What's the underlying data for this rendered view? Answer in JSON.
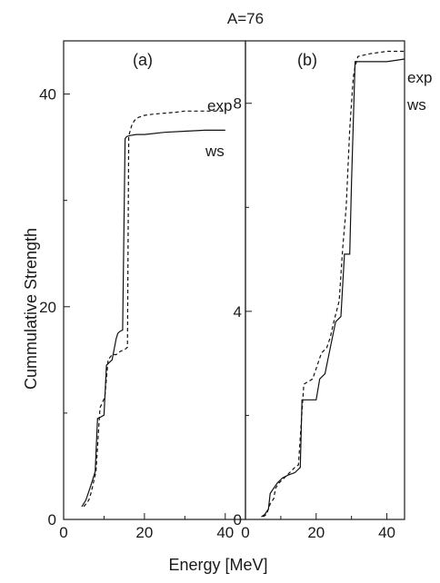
{
  "figure_title": "A=76",
  "chart_data": [
    {
      "type": "line",
      "panel_label": "(a)",
      "xlabel": "Energy [MeV]",
      "ylabel": "Cummulative Strength",
      "xlim": [
        0,
        45
      ],
      "ylim": [
        0,
        45
      ],
      "xticks": [
        0,
        20,
        40
      ],
      "yticks": [
        0,
        20,
        40
      ],
      "grid": false,
      "series": [
        {
          "name": "exp",
          "dash": "4,3",
          "x": [
            5.0,
            6.2,
            6.8,
            7.4,
            8.0,
            9.0,
            9.6,
            10.2,
            11.0,
            12.0,
            13.0,
            14.0,
            15.2,
            15.8,
            16.1,
            16.3,
            16.8,
            17.5,
            18.5,
            20.0,
            22.0,
            25.0,
            28.0,
            30.0,
            35.0,
            40.0
          ],
          "y": [
            1.2,
            1.8,
            2.5,
            3.5,
            4.5,
            10.5,
            11.0,
            11.5,
            15.0,
            15.5,
            15.5,
            15.8,
            16.0,
            16.2,
            36.0,
            36.3,
            37.0,
            37.5,
            37.8,
            38.0,
            38.1,
            38.2,
            38.3,
            38.4,
            38.4,
            38.4
          ]
        },
        {
          "name": "ws",
          "dash": "",
          "x": [
            4.5,
            5.5,
            6.2,
            7.0,
            7.8,
            8.4,
            8.6,
            10.0,
            10.6,
            11.4,
            12.0,
            13.0,
            13.4,
            14.0,
            14.6,
            15.2,
            15.6,
            16.5,
            18.0,
            20.0,
            25.0,
            30.0,
            35.0,
            40.0
          ],
          "y": [
            1.2,
            1.8,
            2.6,
            3.5,
            4.5,
            9.5,
            9.5,
            9.8,
            14.5,
            14.8,
            15.0,
            17.0,
            17.5,
            17.7,
            17.8,
            35.8,
            36.0,
            36.1,
            36.2,
            36.2,
            36.4,
            36.5,
            36.6,
            36.6
          ]
        }
      ]
    },
    {
      "type": "line",
      "panel_label": "(b)",
      "xlabel": "",
      "ylabel": "",
      "xlim": [
        0,
        45
      ],
      "ylim": [
        0,
        9.2
      ],
      "xticks": [
        0,
        20,
        40
      ],
      "yticks": [
        0,
        4,
        8
      ],
      "grid": false,
      "series": [
        {
          "name": "exp",
          "dash": "4,3",
          "x": [
            5.0,
            6.0,
            7.0,
            8.0,
            8.5,
            9.5,
            11.0,
            12.5,
            14.0,
            15.0,
            16.5,
            19.0,
            20.5,
            21.5,
            23.0,
            24.0,
            25.0,
            26.5,
            27.5,
            28.5,
            29.5,
            30.5,
            31.0,
            31.8,
            35.0,
            40.0,
            45.0
          ],
          "y": [
            0.05,
            0.1,
            0.3,
            0.4,
            0.6,
            0.7,
            0.8,
            0.9,
            1.0,
            1.05,
            2.6,
            2.7,
            3.0,
            3.2,
            3.3,
            3.5,
            3.8,
            4.2,
            5.2,
            6.0,
            7.5,
            8.5,
            8.7,
            8.9,
            8.95,
            9.0,
            9.0
          ]
        },
        {
          "name": "ws",
          "dash": "",
          "x": [
            4.5,
            5.5,
            6.5,
            7.0,
            8.0,
            9.0,
            10.5,
            12.0,
            14.0,
            15.5,
            16.0,
            20.0,
            21.0,
            22.5,
            24.0,
            25.5,
            27.0,
            28.0,
            29.5,
            30.0,
            31.0,
            35.0,
            40.0,
            45.0
          ],
          "y": [
            0.05,
            0.1,
            0.2,
            0.5,
            0.6,
            0.7,
            0.8,
            0.85,
            0.9,
            1.0,
            2.3,
            2.3,
            2.7,
            2.8,
            3.3,
            3.8,
            3.9,
            5.1,
            5.1,
            6.5,
            8.8,
            8.8,
            8.8,
            8.85
          ]
        }
      ]
    }
  ],
  "colors": {
    "axis": "#1a1a1a",
    "line": "#111111",
    "background": "#ffffff"
  }
}
